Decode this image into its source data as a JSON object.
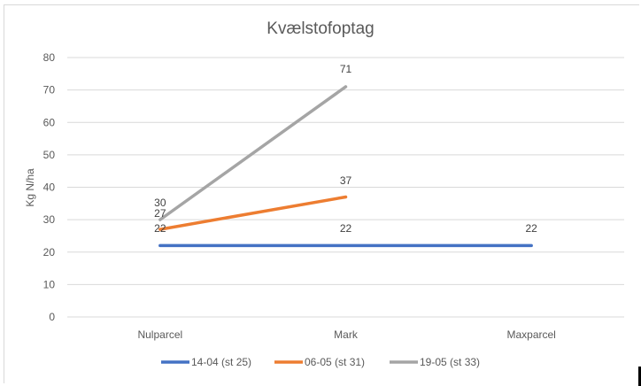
{
  "chart_data": {
    "type": "line",
    "title": "Kvælstofoptag",
    "xlabel": "",
    "ylabel": "Kg N/ha",
    "ylim": [
      0,
      80
    ],
    "yticks": [
      0,
      10,
      20,
      30,
      40,
      50,
      60,
      70,
      80
    ],
    "grid": true,
    "legend_position": "bottom",
    "categories": [
      "Nulparcel",
      "Mark",
      "Maxparcel"
    ],
    "series": [
      {
        "name": "14-04 (st 25)",
        "color": "#4472c4",
        "values": [
          22,
          22,
          22
        ]
      },
      {
        "name": "06-05 (st 31)",
        "color": "#ed7d31",
        "values": [
          27,
          37,
          null
        ]
      },
      {
        "name": "19-05 (st 33)",
        "color": "#a5a5a5",
        "values": [
          30,
          71,
          null
        ]
      }
    ],
    "data_labels": [
      {
        "series": "14-04 (st 25)",
        "labels": [
          "22",
          "22",
          "22"
        ]
      },
      {
        "series": "06-05 (st 31)",
        "labels": [
          "27",
          "37"
        ]
      },
      {
        "series": "19-05 (st 33)",
        "labels": [
          "30",
          "71"
        ]
      }
    ]
  }
}
